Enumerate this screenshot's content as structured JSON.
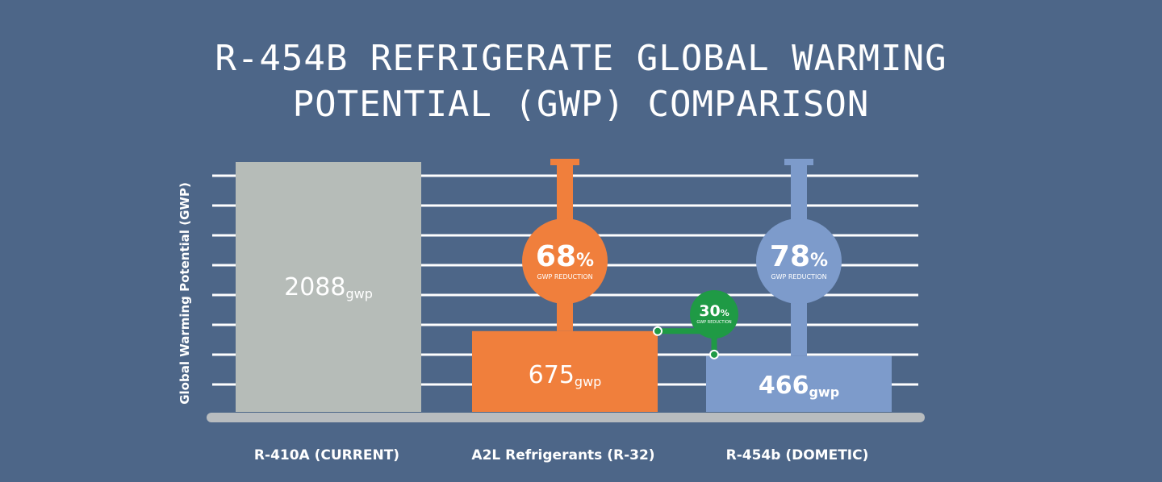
{
  "title_lines": [
    "R-454B REFRIGERATE GLOBAL WARMING",
    "POTENTIAL (GWP) COMPARISON"
  ],
  "colors": {
    "background": "#4d6688",
    "grid": "#ffffff",
    "baseline": "#b8bcbf",
    "r410a": "#b6bcb8",
    "a2l": "#f07f3c",
    "r454b": "#7d9bcb",
    "green": "#1f9a45"
  },
  "chart_data": {
    "type": "bar",
    "title": "R-454B REFRIGERATE GLOBAL WARMING POTENTIAL (GWP) COMPARISON",
    "ylabel": "Global Warming Potential (GWP)",
    "xlabel": "",
    "categories": [
      "R-410A (CURRENT)",
      "A2L Refrigerants (R-32)",
      "R-454b (DOMETIC)"
    ],
    "values": [
      2088,
      675,
      466
    ],
    "value_labels": [
      {
        "number": "2088",
        "unit": "gwp"
      },
      {
        "number": "675",
        "unit": "gwp"
      },
      {
        "number": "466",
        "unit": "gwp"
      }
    ],
    "ylim": [
      0,
      2250
    ],
    "grid": true,
    "annotations": [
      {
        "bar": 1,
        "percent": "68",
        "symbol": "%",
        "caption": "GWP REDUCTION",
        "color": "orange"
      },
      {
        "bar": 2,
        "percent": "78",
        "symbol": "%",
        "caption": "GWP REDUCTION",
        "color": "blue"
      },
      {
        "between": [
          1,
          2
        ],
        "percent": "30",
        "symbol": "%",
        "caption": "GWP REDUCTION",
        "color": "green"
      }
    ]
  }
}
